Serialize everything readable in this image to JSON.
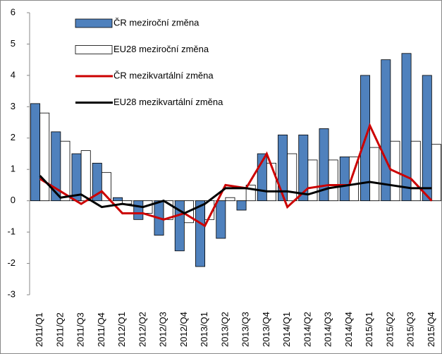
{
  "chart_data": {
    "type": "bar",
    "categories": [
      "2011/Q1",
      "2011/Q2",
      "2011/Q3",
      "2011/Q4",
      "2012/Q1",
      "2012/Q2",
      "2012/Q3",
      "2012/Q4",
      "2013/Q1",
      "2013/Q2",
      "2013/Q3",
      "2013/Q4",
      "2014/Q1",
      "2014/Q2",
      "2014/Q3",
      "2014/Q4",
      "2015/Q1",
      "2015/Q2",
      "2015/Q3",
      "2015/Q4"
    ],
    "series": [
      {
        "name": "ČR meziroční změna",
        "type": "bar",
        "color": "#4f81bd",
        "values": [
          3.1,
          2.2,
          1.5,
          1.2,
          0.1,
          -0.6,
          -1.1,
          -1.6,
          -2.1,
          -1.2,
          -0.3,
          1.5,
          2.1,
          2.1,
          2.3,
          1.4,
          4.0,
          4.5,
          4.7,
          4.0
        ]
      },
      {
        "name": "EU28 meziroční změna",
        "type": "bar",
        "color": "#ffffff",
        "values": [
          2.8,
          1.9,
          1.6,
          0.9,
          -0.1,
          -0.4,
          -0.6,
          -0.7,
          -0.6,
          0.1,
          0.5,
          1.2,
          1.5,
          1.3,
          1.3,
          1.4,
          1.7,
          1.9,
          1.9,
          1.8
        ]
      },
      {
        "name": "ČR mezikvartální změna",
        "type": "line",
        "color": "#cc0000",
        "values": [
          0.7,
          0.3,
          -0.1,
          0.3,
          -0.4,
          -0.4,
          -0.6,
          -0.4,
          -0.8,
          0.5,
          0.4,
          1.5,
          -0.2,
          0.4,
          0.5,
          0.5,
          2.4,
          1.0,
          0.7,
          0.0
        ]
      },
      {
        "name": "EU28 mezikvartální změna",
        "type": "line",
        "color": "#000000",
        "values": [
          0.8,
          0.1,
          0.2,
          -0.2,
          -0.1,
          -0.2,
          0.0,
          -0.4,
          -0.1,
          0.4,
          0.4,
          0.3,
          0.3,
          0.2,
          0.4,
          0.5,
          0.6,
          0.5,
          0.4,
          0.4
        ]
      }
    ],
    "ylim": [
      -3,
      6
    ],
    "yticks": [
      -3,
      -2,
      -1,
      0,
      1,
      2,
      3,
      4,
      5,
      6
    ],
    "legend": "upper-left"
  }
}
